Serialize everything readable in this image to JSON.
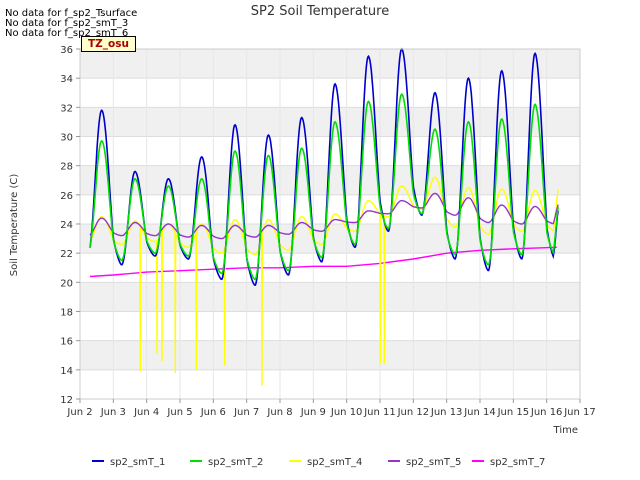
{
  "no_data_messages": [
    "No data for f_sp2_Tsurface",
    "No data for f_sp2_smT_3",
    "No data for f_sp2_smT_6"
  ],
  "tz_label": "TZ_osu",
  "chart_data": {
    "type": "line",
    "title": "SP2 Soil Temperature",
    "xlabel": "Time",
    "ylabel": "Soil Temperature (C)",
    "xlim": [
      2,
      17
    ],
    "ylim": [
      12,
      36
    ],
    "x_ticks": [
      2,
      3,
      4,
      5,
      6,
      7,
      8,
      9,
      10,
      11,
      12,
      13,
      14,
      15,
      16,
      17
    ],
    "x_tick_labels": [
      "Jun 2",
      "Jun 3",
      "Jun 4",
      "Jun 5",
      "Jun 6",
      "Jun 7",
      "Jun 8",
      "Jun 9",
      "Jun 10",
      "Jun 11",
      "Jun 12",
      "Jun 13",
      "Jun 14",
      "Jun 15",
      "Jun 16",
      "Jun 17"
    ],
    "y_ticks": [
      12,
      14,
      16,
      18,
      20,
      22,
      24,
      26,
      28,
      30,
      32,
      34,
      36
    ],
    "grid": true,
    "legend_position": "bottom",
    "series": [
      {
        "name": "sp2_smT_1",
        "color": "#0000cc",
        "daily_max": [
          31.8,
          27.6,
          27.1,
          28.6,
          30.8,
          30.1,
          31.3,
          33.6,
          35.5,
          36.0,
          33.0,
          34.0,
          34.5,
          35.7
        ],
        "daily_min": [
          22.0,
          21.2,
          21.8,
          21.6,
          20.2,
          19.8,
          20.5,
          21.4,
          22.4,
          23.5,
          24.6,
          21.6,
          20.8,
          21.6
        ],
        "start": 24.0,
        "end": 25.0
      },
      {
        "name": "sp2_smT_2",
        "color": "#00dd00",
        "daily_max": [
          29.7,
          27.1,
          26.6,
          27.1,
          29.0,
          28.7,
          29.2,
          31.0,
          32.4,
          32.9,
          30.5,
          31.0,
          31.2,
          32.2
        ],
        "daily_min": [
          22.1,
          21.5,
          22.0,
          21.8,
          20.6,
          20.2,
          20.8,
          21.7,
          22.6,
          23.7,
          24.7,
          21.9,
          21.2,
          21.9
        ],
        "start": 24.0,
        "end": 25.3
      },
      {
        "name": "sp2_smT_4",
        "color": "#ffff00",
        "daily_max": [
          24.5,
          24.2,
          24.0,
          24.0,
          24.3,
          24.3,
          24.5,
          24.7,
          25.6,
          26.6,
          27.2,
          26.5,
          26.4,
          26.3
        ],
        "daily_min": [
          22.8,
          22.6,
          22.8,
          22.4,
          22.0,
          21.9,
          22.2,
          22.6,
          23.5,
          24.5,
          25.0,
          23.8,
          23.3,
          23.5
        ],
        "start": 24.3,
        "end": 26.5,
        "spikes": [
          [
            3.8,
            13.9
          ],
          [
            4.3,
            15.1
          ],
          [
            4.45,
            14.6
          ],
          [
            4.85,
            13.8
          ],
          [
            5.48,
            14.0
          ],
          [
            6.33,
            14.3
          ],
          [
            7.45,
            12.9
          ],
          [
            11.0,
            14.4
          ],
          [
            11.12,
            14.4
          ]
        ]
      },
      {
        "name": "sp2_smT_5",
        "color": "#9933cc",
        "daily_max": [
          24.4,
          24.1,
          24.0,
          23.9,
          23.9,
          23.9,
          24.1,
          24.3,
          24.9,
          25.6,
          26.1,
          25.8,
          25.3,
          25.2
        ],
        "daily_min": [
          23.2,
          23.2,
          23.2,
          23.1,
          23.0,
          23.1,
          23.3,
          23.5,
          24.1,
          24.7,
          25.1,
          24.6,
          24.1,
          24.0
        ],
        "start": 23.6,
        "end": 25.4
      },
      {
        "name": "sp2_smT_7",
        "color": "#ff00ff",
        "x": [
          2.3,
          3.0,
          4.0,
          5.0,
          6.0,
          7.0,
          8.0,
          9.0,
          10.0,
          11.0,
          12.0,
          13.0,
          14.0,
          15.0,
          16.3
        ],
        "values": [
          20.4,
          20.5,
          20.7,
          20.8,
          20.9,
          21.0,
          21.0,
          21.1,
          21.1,
          21.3,
          21.6,
          22.0,
          22.2,
          22.3,
          22.4
        ]
      }
    ]
  }
}
